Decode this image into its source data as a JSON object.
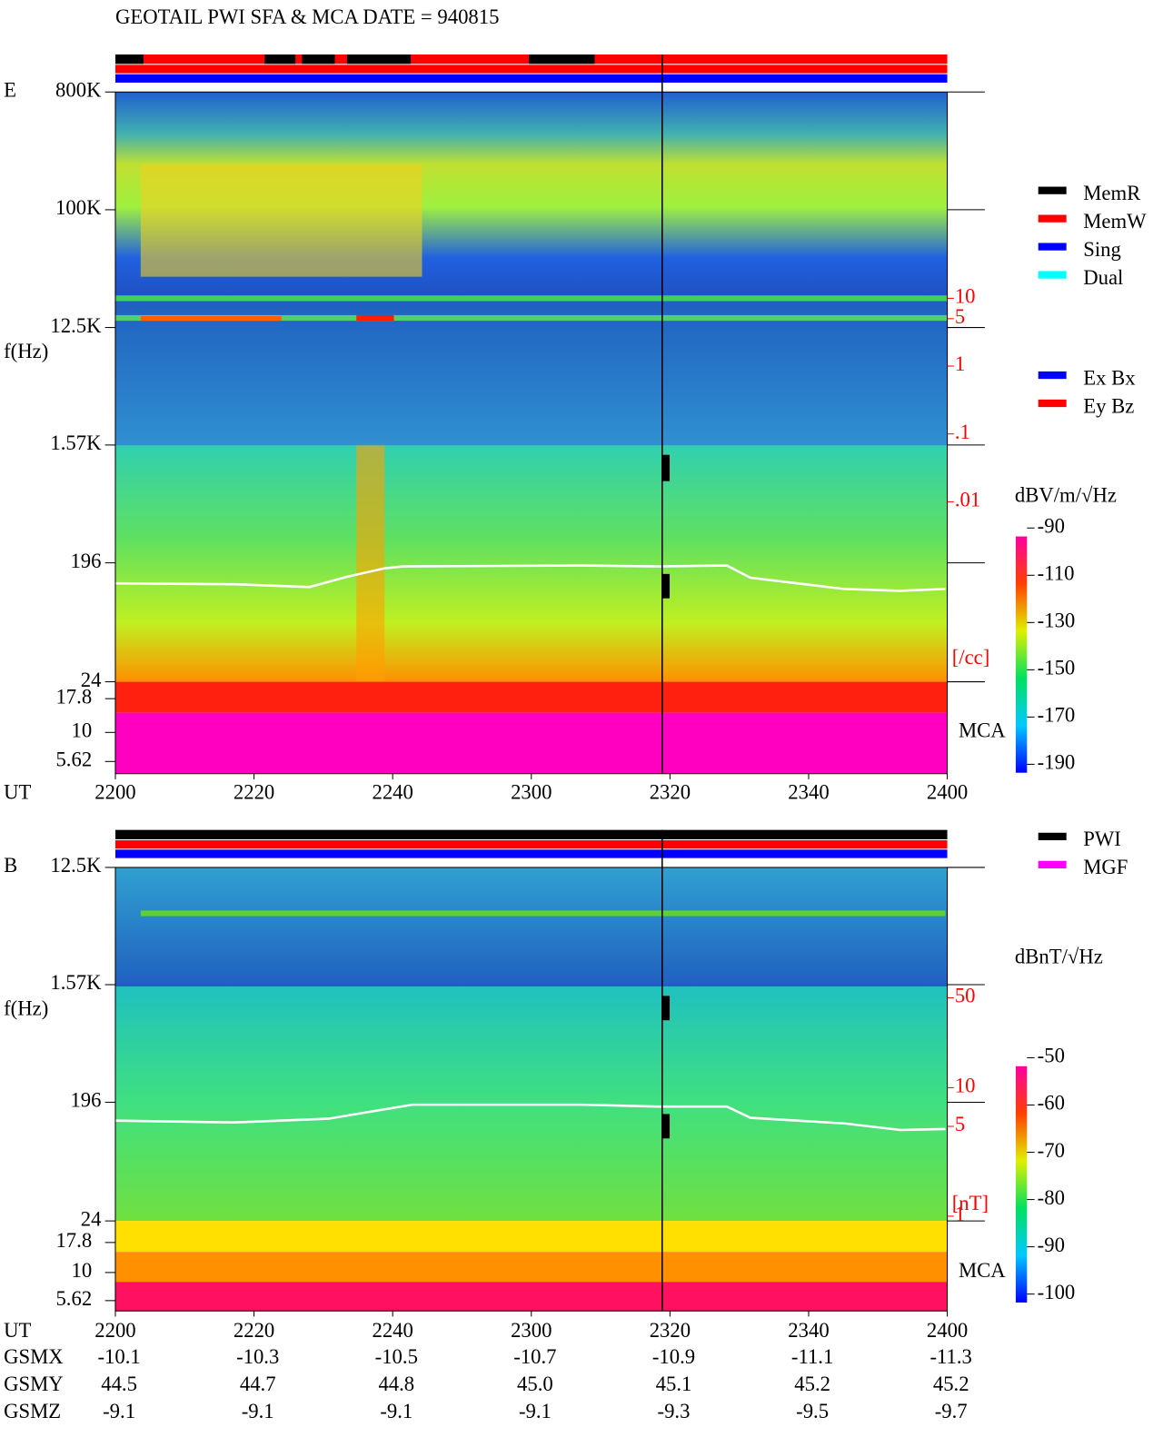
{
  "title": "GEOTAIL  PWI SFA & MCA   DATE = 940815",
  "chart_data": [
    {
      "type": "spectrogram",
      "panel_label": "E",
      "y_label": "f(Hz)",
      "x_label": "UT",
      "yscale": "log",
      "yticks": [
        {
          "value": 800000,
          "label": "800K"
        },
        {
          "value": 100000,
          "label": "100K"
        },
        {
          "value": 12500,
          "label": "12.5K"
        },
        {
          "value": 1570,
          "label": "1.57K"
        },
        196,
        24
      ],
      "mca_ticks": [
        17.8,
        10,
        5.62
      ],
      "mca_label": "MCA",
      "categories": [
        "2200",
        "2220",
        "2240",
        "2300",
        "2320",
        "2340",
        "2400"
      ],
      "colorbar_label": "dBV/m/√Hz",
      "colorbar_ticks": [
        -90,
        -110,
        -130,
        -150,
        -170,
        -190
      ],
      "right_ticks": [
        10,
        5,
        1,
        {
          "value": 0.1,
          "label": ".1"
        },
        {
          "value": 0.01,
          "label": ".01"
        }
      ],
      "right_unit": "[/cc]",
      "legend": [
        {
          "name": "MemR",
          "color": "#000000"
        },
        {
          "name": "MemW",
          "color": "#ff0000"
        },
        {
          "name": "Sing",
          "color": "#0000ff"
        },
        {
          "name": "Dual",
          "color": "#00ffff"
        }
      ],
      "legend2": [
        {
          "name": "Ex Bx",
          "color": "#0000ff"
        },
        {
          "name": "Ey Bz",
          "color": "#ff0000"
        }
      ]
    },
    {
      "type": "spectrogram",
      "panel_label": "B",
      "y_label": "f(Hz)",
      "x_label": "UT",
      "yscale": "log",
      "yticks": [
        {
          "value": 12500,
          "label": "12.5K"
        },
        {
          "value": 1570,
          "label": "1.57K"
        },
        196,
        24
      ],
      "mca_ticks": [
        17.8,
        10,
        5.62
      ],
      "mca_label": "MCA",
      "categories": [
        "2200",
        "2220",
        "2240",
        "2300",
        "2320",
        "2340",
        "2400"
      ],
      "colorbar_label": "dBnT/√Hz",
      "colorbar_ticks": [
        -50,
        -60,
        -70,
        -80,
        -90,
        -100
      ],
      "right_ticks": [
        50,
        10,
        5,
        1
      ],
      "right_unit": "[nT]",
      "legend": [
        {
          "name": "PWI",
          "color": "#000000"
        },
        {
          "name": "MGF",
          "color": "#ff00ff"
        }
      ]
    }
  ],
  "orbit": {
    "rows": [
      {
        "name": "GSMX",
        "values": [
          "-10.1",
          "-10.3",
          "-10.5",
          "-10.7",
          "-10.9",
          "-11.1",
          "-11.3"
        ]
      },
      {
        "name": "GSMY",
        "values": [
          "44.5",
          "44.7",
          "44.8",
          "45.0",
          "45.1",
          "45.2",
          "45.2"
        ]
      },
      {
        "name": "GSMZ",
        "values": [
          "-9.1",
          "-9.1",
          "-9.1",
          "-9.1",
          "-9.3",
          "-9.5",
          "-9.7"
        ]
      }
    ]
  }
}
